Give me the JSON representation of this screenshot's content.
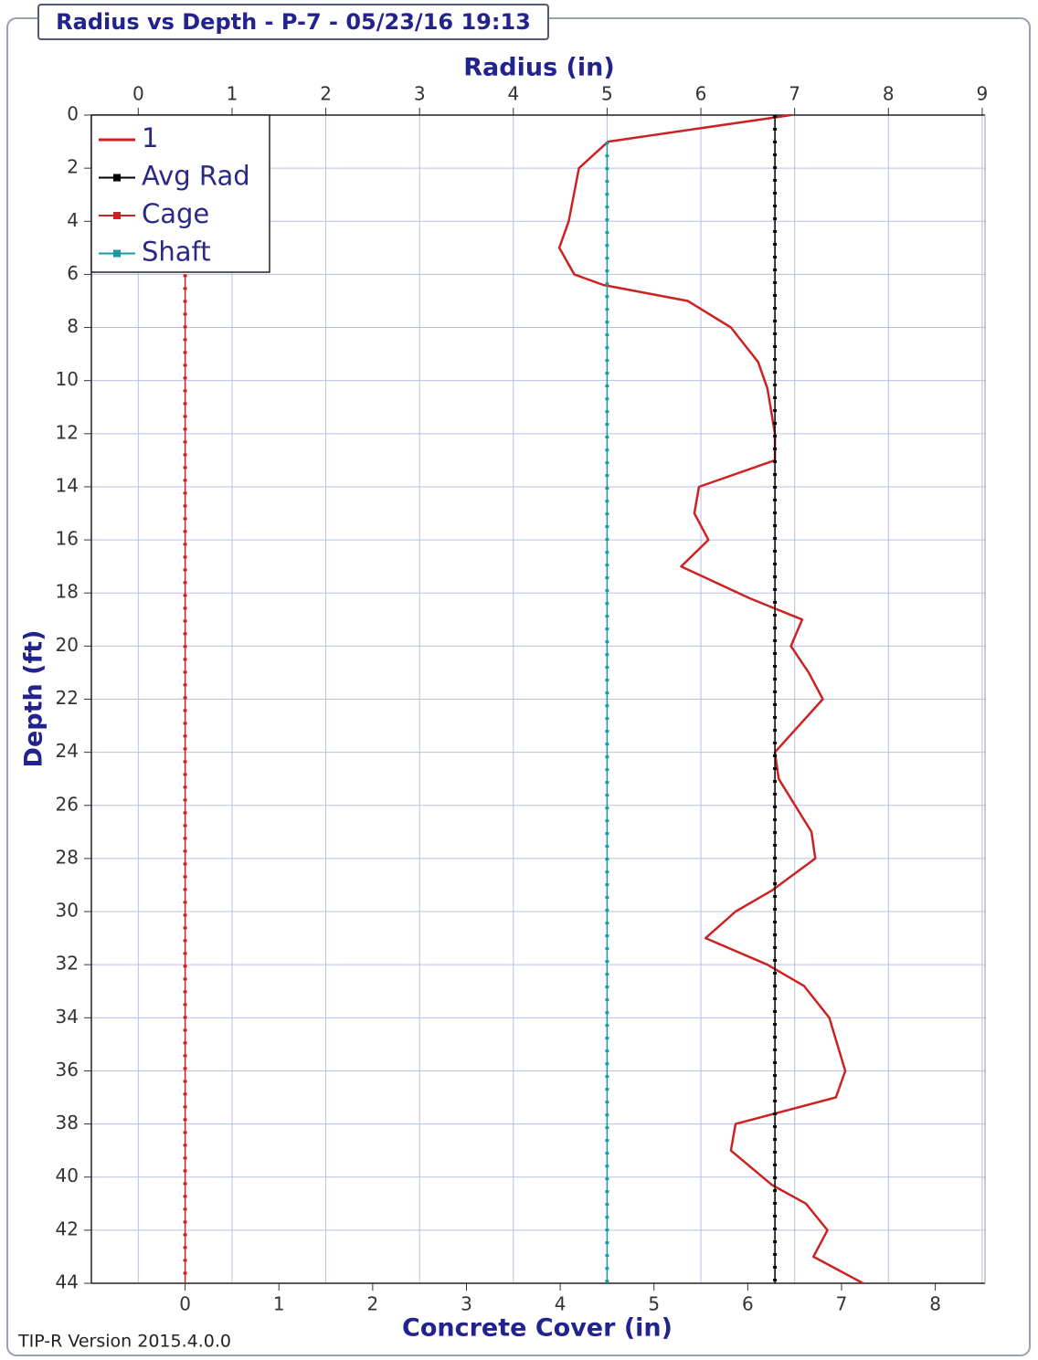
{
  "chart_data": {
    "type": "line",
    "title": "Radius vs Depth - P-7 - 05/23/16 19:13",
    "x_label": "Radius (in)",
    "x2_label": "Concrete Cover (in)",
    "y_label": "Depth (ft)",
    "note": "TIP-R Version 2015.4.0.0",
    "xlim": [
      -0.5,
      9.03
    ],
    "xticks": [
      0,
      1,
      2,
      3,
      4,
      5,
      6,
      7,
      8,
      9
    ],
    "x2lim": [
      -1,
      8.53
    ],
    "x2ticks": [
      0,
      1,
      2,
      3,
      4,
      5,
      6,
      7,
      8
    ],
    "ylim": [
      0,
      44
    ],
    "y_inverted": true,
    "yticks": [
      0,
      2,
      4,
      6,
      8,
      10,
      12,
      14,
      16,
      18,
      20,
      22,
      24,
      26,
      28,
      30,
      32,
      34,
      36,
      38,
      40,
      42,
      44
    ],
    "grid": true,
    "legend": "upper left",
    "series": [
      {
        "name": "1",
        "color": "#cc2222",
        "style": "solid",
        "depth": [
          0,
          1,
          2,
          4,
          5,
          6,
          6.4,
          7,
          8,
          9.3,
          10.3,
          12,
          13,
          14,
          15,
          16,
          17,
          18.2,
          19,
          20,
          21,
          22,
          24,
          25,
          27,
          28,
          29.2,
          30,
          31,
          32,
          32.8,
          34,
          36,
          37,
          38,
          39,
          40.3,
          41,
          42,
          43,
          44
        ],
        "values": [
          6.96,
          5.01,
          4.7,
          4.59,
          4.49,
          4.65,
          4.96,
          5.86,
          6.32,
          6.61,
          6.71,
          6.79,
          6.79,
          5.98,
          5.93,
          6.08,
          5.79,
          6.52,
          7.08,
          6.96,
          7.15,
          7.3,
          6.79,
          6.83,
          7.18,
          7.22,
          6.76,
          6.37,
          6.05,
          6.71,
          7.1,
          7.37,
          7.54,
          7.44,
          6.37,
          6.32,
          6.76,
          7.12,
          7.35,
          7.2,
          7.73
        ]
      },
      {
        "name": "Avg Rad",
        "color": "#000000",
        "style": "dotted",
        "depth": [
          0,
          44
        ],
        "values": [
          6.79,
          6.79
        ]
      },
      {
        "name": "Cage",
        "color": "#cc2222",
        "style": "dotted",
        "depth": [
          6,
          44
        ],
        "values": [
          0.5,
          0.5
        ]
      },
      {
        "name": "Shaft",
        "color": "#1a9aa0",
        "style": "dotted",
        "depth": [
          1,
          44
        ],
        "values": [
          5,
          5
        ]
      }
    ]
  }
}
